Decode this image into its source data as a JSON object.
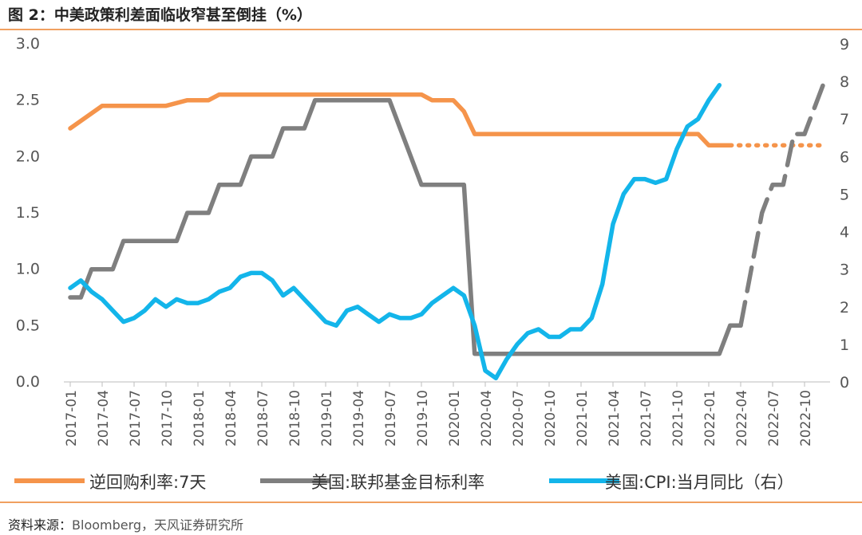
{
  "header": {
    "title": "图 2：中美政策利差面临收窄甚至倒挂（%）"
  },
  "footer": {
    "source_label": "资料来源：",
    "source_text": "Bloomberg，天风证券研究所"
  },
  "colors": {
    "reverse_repo": "#F5944B",
    "fed_rate": "#7F7F7F",
    "us_cpi": "#13B5EA",
    "rule": "#F0A060"
  },
  "chart_data": {
    "type": "line",
    "x_tick_labels": [
      "2017-01",
      "2017-04",
      "2017-07",
      "2017-10",
      "2018-01",
      "2018-04",
      "2018-07",
      "2018-10",
      "2019-01",
      "2019-04",
      "2019-07",
      "2019-10",
      "2020-01",
      "2020-04",
      "2020-07",
      "2020-10",
      "2021-01",
      "2021-04",
      "2021-07",
      "2021-10",
      "2022-01",
      "2022-04",
      "2022-07",
      "2022-10"
    ],
    "y_left": {
      "ticks": [
        "0.0",
        "0.5",
        "1.0",
        "1.5",
        "2.0",
        "2.5",
        "3.0"
      ],
      "range": [
        0,
        3
      ]
    },
    "y_right": {
      "ticks": [
        "0",
        "1",
        "2",
        "3",
        "4",
        "5",
        "6",
        "7",
        "8",
        "9"
      ],
      "range": [
        0,
        9
      ]
    },
    "series": [
      {
        "name": "逆回购利率:7天",
        "axis": "left",
        "points": [
          [
            "2017-01",
            2.25
          ],
          [
            "2017-04",
            2.45
          ],
          [
            "2017-10",
            2.45
          ],
          [
            "2017-12",
            2.5
          ],
          [
            "2018-02",
            2.5
          ],
          [
            "2018-03",
            2.55
          ],
          [
            "2019-10",
            2.55
          ],
          [
            "2019-11",
            2.5
          ],
          [
            "2020-01",
            2.5
          ],
          [
            "2020-02",
            2.4
          ],
          [
            "2020-03",
            2.2
          ],
          [
            "2021-12",
            2.2
          ],
          [
            "2022-01",
            2.1
          ],
          [
            "2022-03",
            2.1
          ]
        ],
        "forecast": [
          [
            "2022-03",
            2.1
          ],
          [
            "2022-12",
            2.1
          ]
        ]
      },
      {
        "name": "美国:联邦基金目标利率",
        "axis": "left",
        "points": [
          [
            "2017-01",
            0.75
          ],
          [
            "2017-02",
            0.75
          ],
          [
            "2017-03",
            1.0
          ],
          [
            "2017-05",
            1.0
          ],
          [
            "2017-06",
            1.25
          ],
          [
            "2017-11",
            1.25
          ],
          [
            "2017-12",
            1.5
          ],
          [
            "2018-02",
            1.5
          ],
          [
            "2018-03",
            1.75
          ],
          [
            "2018-05",
            1.75
          ],
          [
            "2018-06",
            2.0
          ],
          [
            "2018-08",
            2.0
          ],
          [
            "2018-09",
            2.25
          ],
          [
            "2018-11",
            2.25
          ],
          [
            "2018-12",
            2.5
          ],
          [
            "2019-07",
            2.5
          ],
          [
            "2019-08",
            2.25
          ],
          [
            "2019-09",
            2.0
          ],
          [
            "2019-10",
            1.75
          ],
          [
            "2020-02",
            1.75
          ],
          [
            "2020-03",
            0.25
          ],
          [
            "2022-02",
            0.25
          ],
          [
            "2022-03",
            0.5
          ],
          [
            "2022-04",
            0.5
          ]
        ],
        "forecast": [
          [
            "2022-04",
            0.5
          ],
          [
            "2022-05",
            1.0
          ],
          [
            "2022-06",
            1.5
          ],
          [
            "2022-07",
            1.75
          ],
          [
            "2022-08",
            1.75
          ],
          [
            "2022-09",
            2.2
          ],
          [
            "2022-10",
            2.2
          ],
          [
            "2022-12",
            2.7
          ]
        ]
      },
      {
        "name": "美国:CPI:当月同比（右）",
        "axis": "right",
        "points": [
          [
            "2017-01",
            2.5
          ],
          [
            "2017-02",
            2.7
          ],
          [
            "2017-03",
            2.4
          ],
          [
            "2017-04",
            2.2
          ],
          [
            "2017-05",
            1.9
          ],
          [
            "2017-06",
            1.6
          ],
          [
            "2017-07",
            1.7
          ],
          [
            "2017-08",
            1.9
          ],
          [
            "2017-09",
            2.2
          ],
          [
            "2017-10",
            2.0
          ],
          [
            "2017-11",
            2.2
          ],
          [
            "2017-12",
            2.1
          ],
          [
            "2018-01",
            2.1
          ],
          [
            "2018-02",
            2.2
          ],
          [
            "2018-03",
            2.4
          ],
          [
            "2018-04",
            2.5
          ],
          [
            "2018-05",
            2.8
          ],
          [
            "2018-06",
            2.9
          ],
          [
            "2018-07",
            2.9
          ],
          [
            "2018-08",
            2.7
          ],
          [
            "2018-09",
            2.3
          ],
          [
            "2018-10",
            2.5
          ],
          [
            "2018-11",
            2.2
          ],
          [
            "2018-12",
            1.9
          ],
          [
            "2019-01",
            1.6
          ],
          [
            "2019-02",
            1.5
          ],
          [
            "2019-03",
            1.9
          ],
          [
            "2019-04",
            2.0
          ],
          [
            "2019-05",
            1.8
          ],
          [
            "2019-06",
            1.6
          ],
          [
            "2019-07",
            1.8
          ],
          [
            "2019-08",
            1.7
          ],
          [
            "2019-09",
            1.7
          ],
          [
            "2019-10",
            1.8
          ],
          [
            "2019-11",
            2.1
          ],
          [
            "2019-12",
            2.3
          ],
          [
            "2020-01",
            2.5
          ],
          [
            "2020-02",
            2.3
          ],
          [
            "2020-03",
            1.5
          ],
          [
            "2020-04",
            0.3
          ],
          [
            "2020-05",
            0.1
          ],
          [
            "2020-06",
            0.6
          ],
          [
            "2020-07",
            1.0
          ],
          [
            "2020-08",
            1.3
          ],
          [
            "2020-09",
            1.4
          ],
          [
            "2020-10",
            1.2
          ],
          [
            "2020-11",
            1.2
          ],
          [
            "2020-12",
            1.4
          ],
          [
            "2021-01",
            1.4
          ],
          [
            "2021-02",
            1.7
          ],
          [
            "2021-03",
            2.6
          ],
          [
            "2021-04",
            4.2
          ],
          [
            "2021-05",
            5.0
          ],
          [
            "2021-06",
            5.4
          ],
          [
            "2021-07",
            5.4
          ],
          [
            "2021-08",
            5.3
          ],
          [
            "2021-09",
            5.4
          ],
          [
            "2021-10",
            6.2
          ],
          [
            "2021-11",
            6.8
          ],
          [
            "2021-12",
            7.0
          ],
          [
            "2022-01",
            7.5
          ],
          [
            "2022-02",
            7.9
          ]
        ]
      }
    ],
    "legend_position": "bottom"
  }
}
